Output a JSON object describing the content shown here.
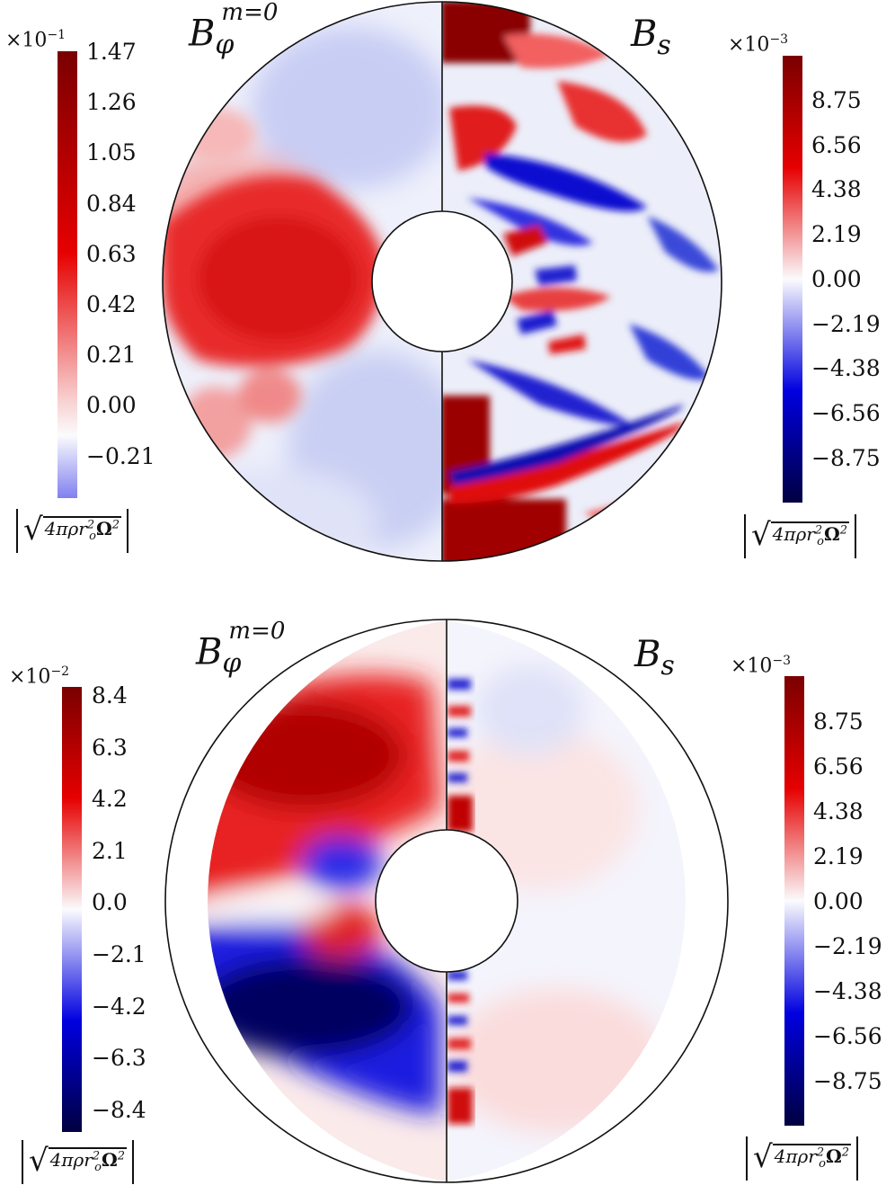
{
  "panels": [
    {
      "left_label": {
        "base": "B",
        "sub": "φ",
        "sup": "m=0"
      },
      "right_label": {
        "base": "B",
        "sub": "s"
      },
      "left_colorbar": {
        "exponent_prefix": "×10",
        "exponent": "−1",
        "ticks": [
          "1.47",
          "1.26",
          "1.05",
          "0.84",
          "0.63",
          "0.42",
          "0.21",
          "0.00",
          "−0.21"
        ],
        "units": {
          "prefix": "4πρr",
          "sub": "o",
          "sup": "2",
          "over": "Ω",
          "sup2": "2"
        }
      },
      "right_colorbar": {
        "exponent_prefix": "×10",
        "exponent": "−3",
        "ticks": [
          "8.75",
          "6.56",
          "4.38",
          "2.19",
          "0.00",
          "−2.19",
          "−4.38",
          "−6.56",
          "−8.75"
        ],
        "units": {
          "prefix": "4πρr",
          "sub": "o",
          "sup": "2",
          "over": "Ω",
          "sup2": "2"
        }
      }
    },
    {
      "left_label": {
        "base": "B",
        "sub": "φ",
        "sup": "m=0"
      },
      "right_label": {
        "base": "B",
        "sub": "s"
      },
      "left_colorbar": {
        "exponent_prefix": "×10",
        "exponent": "−2",
        "ticks": [
          "8.4",
          "6.3",
          "4.2",
          "2.1",
          "0.0",
          "−2.1",
          "−4.2",
          "−6.3",
          "−8.4"
        ],
        "units": {
          "prefix": "4πρr",
          "sub": "o",
          "sup": "2",
          "over": "Ω",
          "sup2": "2"
        }
      },
      "right_colorbar": {
        "exponent_prefix": "×10",
        "exponent": "−3",
        "ticks": [
          "8.75",
          "6.56",
          "4.38",
          "2.19",
          "0.00",
          "−2.19",
          "−4.38",
          "−6.56",
          "−8.75"
        ],
        "units": {
          "prefix": "4πρr",
          "sub": "o",
          "sup": "2",
          "over": "Ω",
          "sup2": "2"
        }
      }
    }
  ],
  "colors": {
    "dark_red": "#7a0000",
    "red": "#e60000",
    "white": "#fbfbfd",
    "blue": "#0000e0",
    "dark_blue": "#000040"
  }
}
